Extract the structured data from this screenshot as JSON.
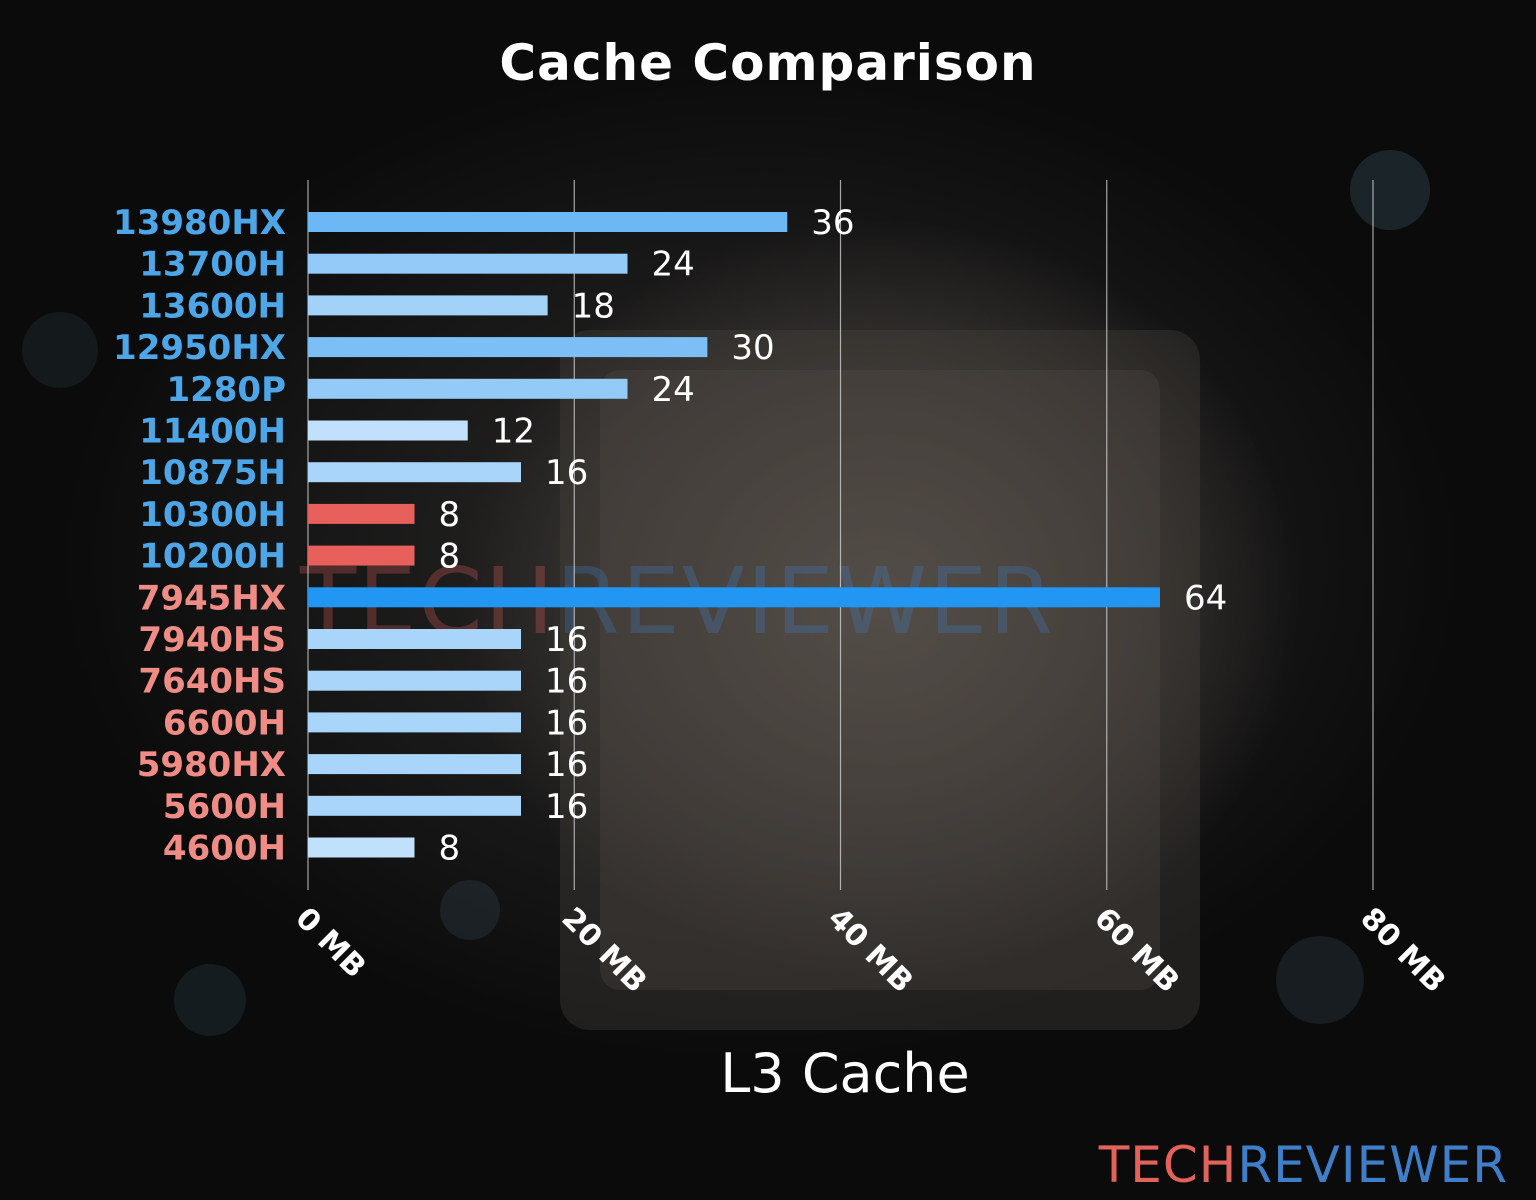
{
  "title": "Cache Comparison",
  "watermark": {
    "part1": "TECH",
    "part2": "REVIEWER"
  },
  "brand": {
    "part1": "TECH",
    "part2": "REVIEWER"
  },
  "chart_data": {
    "type": "bar",
    "orientation": "horizontal",
    "title": "Cache Comparison",
    "xlabel": "L3 Cache",
    "ylabel": "",
    "xlim": [
      0,
      80
    ],
    "xticks": [
      0,
      20,
      40,
      60,
      80
    ],
    "xtick_labels": [
      "0 MB",
      "20 MB",
      "40 MB",
      "60 MB",
      "80 MB"
    ],
    "grid": true,
    "categories": [
      "13980HX",
      "13700H",
      "13600H",
      "12950HX",
      "1280P",
      "11400H",
      "10875H",
      "10300H",
      "10200H",
      "7945HX",
      "7940HS",
      "7640HS",
      "6600H",
      "5980HX",
      "5600H",
      "4600H"
    ],
    "values": [
      36,
      24,
      18,
      30,
      24,
      12,
      16,
      8,
      8,
      64,
      16,
      16,
      16,
      16,
      16,
      8
    ],
    "label_colors": [
      "#4da6e8",
      "#4da6e8",
      "#4da6e8",
      "#4da6e8",
      "#4da6e8",
      "#4da6e8",
      "#4da6e8",
      "#4da6e8",
      "#4da6e8",
      "#f08c86",
      "#f08c86",
      "#f08c86",
      "#f08c86",
      "#f08c86",
      "#f08c86",
      "#f08c86"
    ],
    "bar_colors": [
      "#6bb8f5",
      "#93caf8",
      "#a3d2f8",
      "#7cbff6",
      "#93caf8",
      "#c0e0fb",
      "#a8d5f9",
      "#e8605c",
      "#e8605c",
      "#2196f3",
      "#a8d5f9",
      "#a8d5f9",
      "#a8d5f9",
      "#a8d5f9",
      "#a8d5f9",
      "#c0e0fb"
    ]
  }
}
